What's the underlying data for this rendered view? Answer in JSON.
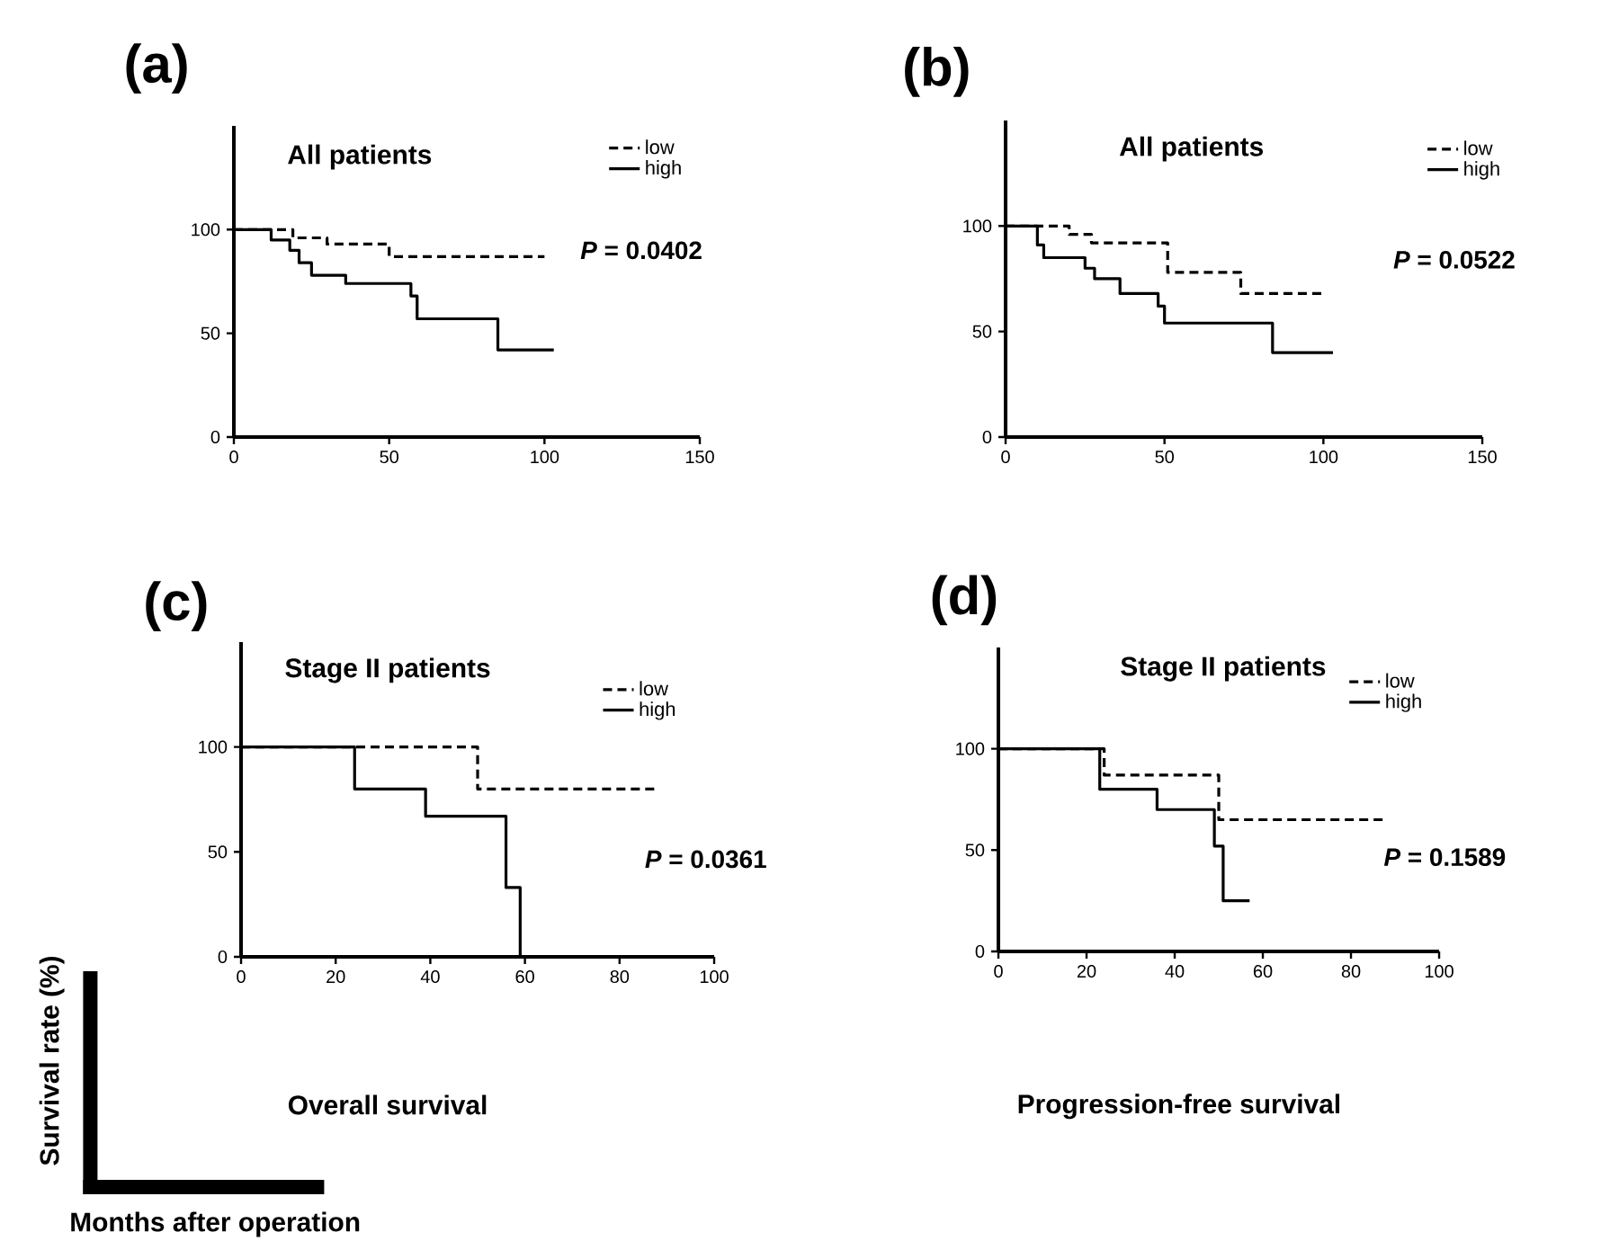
{
  "chart_data": [
    {
      "type": "step",
      "title": "(a)",
      "subtitle": "All patients",
      "legend": "top right",
      "xlim": [
        0,
        150
      ],
      "xticks": [
        0,
        50,
        100,
        150
      ],
      "ylim": [
        0,
        150
      ],
      "yticks": [
        0,
        50,
        100
      ],
      "annotations": [
        "*P* = 0.0402"
      ],
      "series": [
        {
          "name": "low",
          "color": "#000000",
          "line_style": "dashed",
          "x": [
            0,
            19,
            30,
            50,
            100
          ],
          "values": [
            100,
            96,
            93,
            87,
            87
          ]
        },
        {
          "name": "high",
          "color": "#000000",
          "line_style": "solid",
          "x": [
            0,
            12,
            18,
            21,
            25,
            36,
            57,
            59,
            85,
            103
          ],
          "values": [
            100,
            95,
            90,
            84,
            78,
            74,
            68,
            57,
            42,
            42
          ]
        }
      ]
    },
    {
      "type": "step",
      "title": "(b)",
      "subtitle": "All patients",
      "legend": "top right",
      "xlim": [
        0,
        150
      ],
      "xticks": [
        0,
        50,
        100,
        150
      ],
      "ylim": [
        0,
        150
      ],
      "yticks": [
        0,
        50,
        100
      ],
      "annotations": [
        "*P* = 0.0522"
      ],
      "series": [
        {
          "name": "low",
          "color": "#000000",
          "line_style": "dashed",
          "x": [
            0,
            20,
            27,
            51,
            74,
            100
          ],
          "values": [
            100,
            96,
            92,
            78,
            68,
            68
          ]
        },
        {
          "name": "high",
          "color": "#000000",
          "line_style": "solid",
          "x": [
            0,
            10,
            12,
            25,
            28,
            36,
            48,
            50,
            84,
            103
          ],
          "values": [
            100,
            91,
            85,
            80,
            75,
            68,
            62,
            54,
            40,
            40
          ]
        }
      ]
    },
    {
      "type": "step",
      "title": "(c)",
      "subtitle": "Stage II patients",
      "legend": "top right",
      "xlim": [
        0,
        100
      ],
      "xticks": [
        0,
        20,
        40,
        60,
        80,
        100
      ],
      "ylim": [
        0,
        150
      ],
      "yticks": [
        0,
        50,
        100
      ],
      "xlabel": "Months after operation",
      "ylabel": "Survival rate (%)",
      "annotations": [
        "*P* = 0.0361",
        "Overall survival"
      ],
      "series": [
        {
          "name": "low",
          "color": "#000000",
          "line_style": "dashed",
          "x": [
            0,
            50,
            88
          ],
          "values": [
            100,
            80,
            80
          ]
        },
        {
          "name": "high",
          "color": "#000000",
          "line_style": "solid",
          "x": [
            0,
            24,
            39,
            56,
            59
          ],
          "values": [
            100,
            80,
            67,
            33,
            0
          ]
        }
      ]
    },
    {
      "type": "step",
      "title": "(d)",
      "subtitle": "Stage II patients",
      "legend": "top right",
      "xlim": [
        0,
        100
      ],
      "xticks": [
        0,
        20,
        40,
        60,
        80,
        100
      ],
      "ylim": [
        0,
        150
      ],
      "yticks": [
        0,
        50,
        100
      ],
      "annotations": [
        "*P* = 0.1589",
        "Progression-free survival"
      ],
      "series": [
        {
          "name": "low",
          "color": "#000000",
          "line_style": "dashed",
          "x": [
            0,
            24,
            50,
            88
          ],
          "values": [
            100,
            87,
            65,
            65
          ]
        },
        {
          "name": "high",
          "color": "#000000",
          "line_style": "solid",
          "x": [
            0,
            23,
            36,
            49,
            51,
            57
          ],
          "values": [
            100,
            80,
            70,
            52,
            25,
            25
          ]
        }
      ]
    }
  ]
}
